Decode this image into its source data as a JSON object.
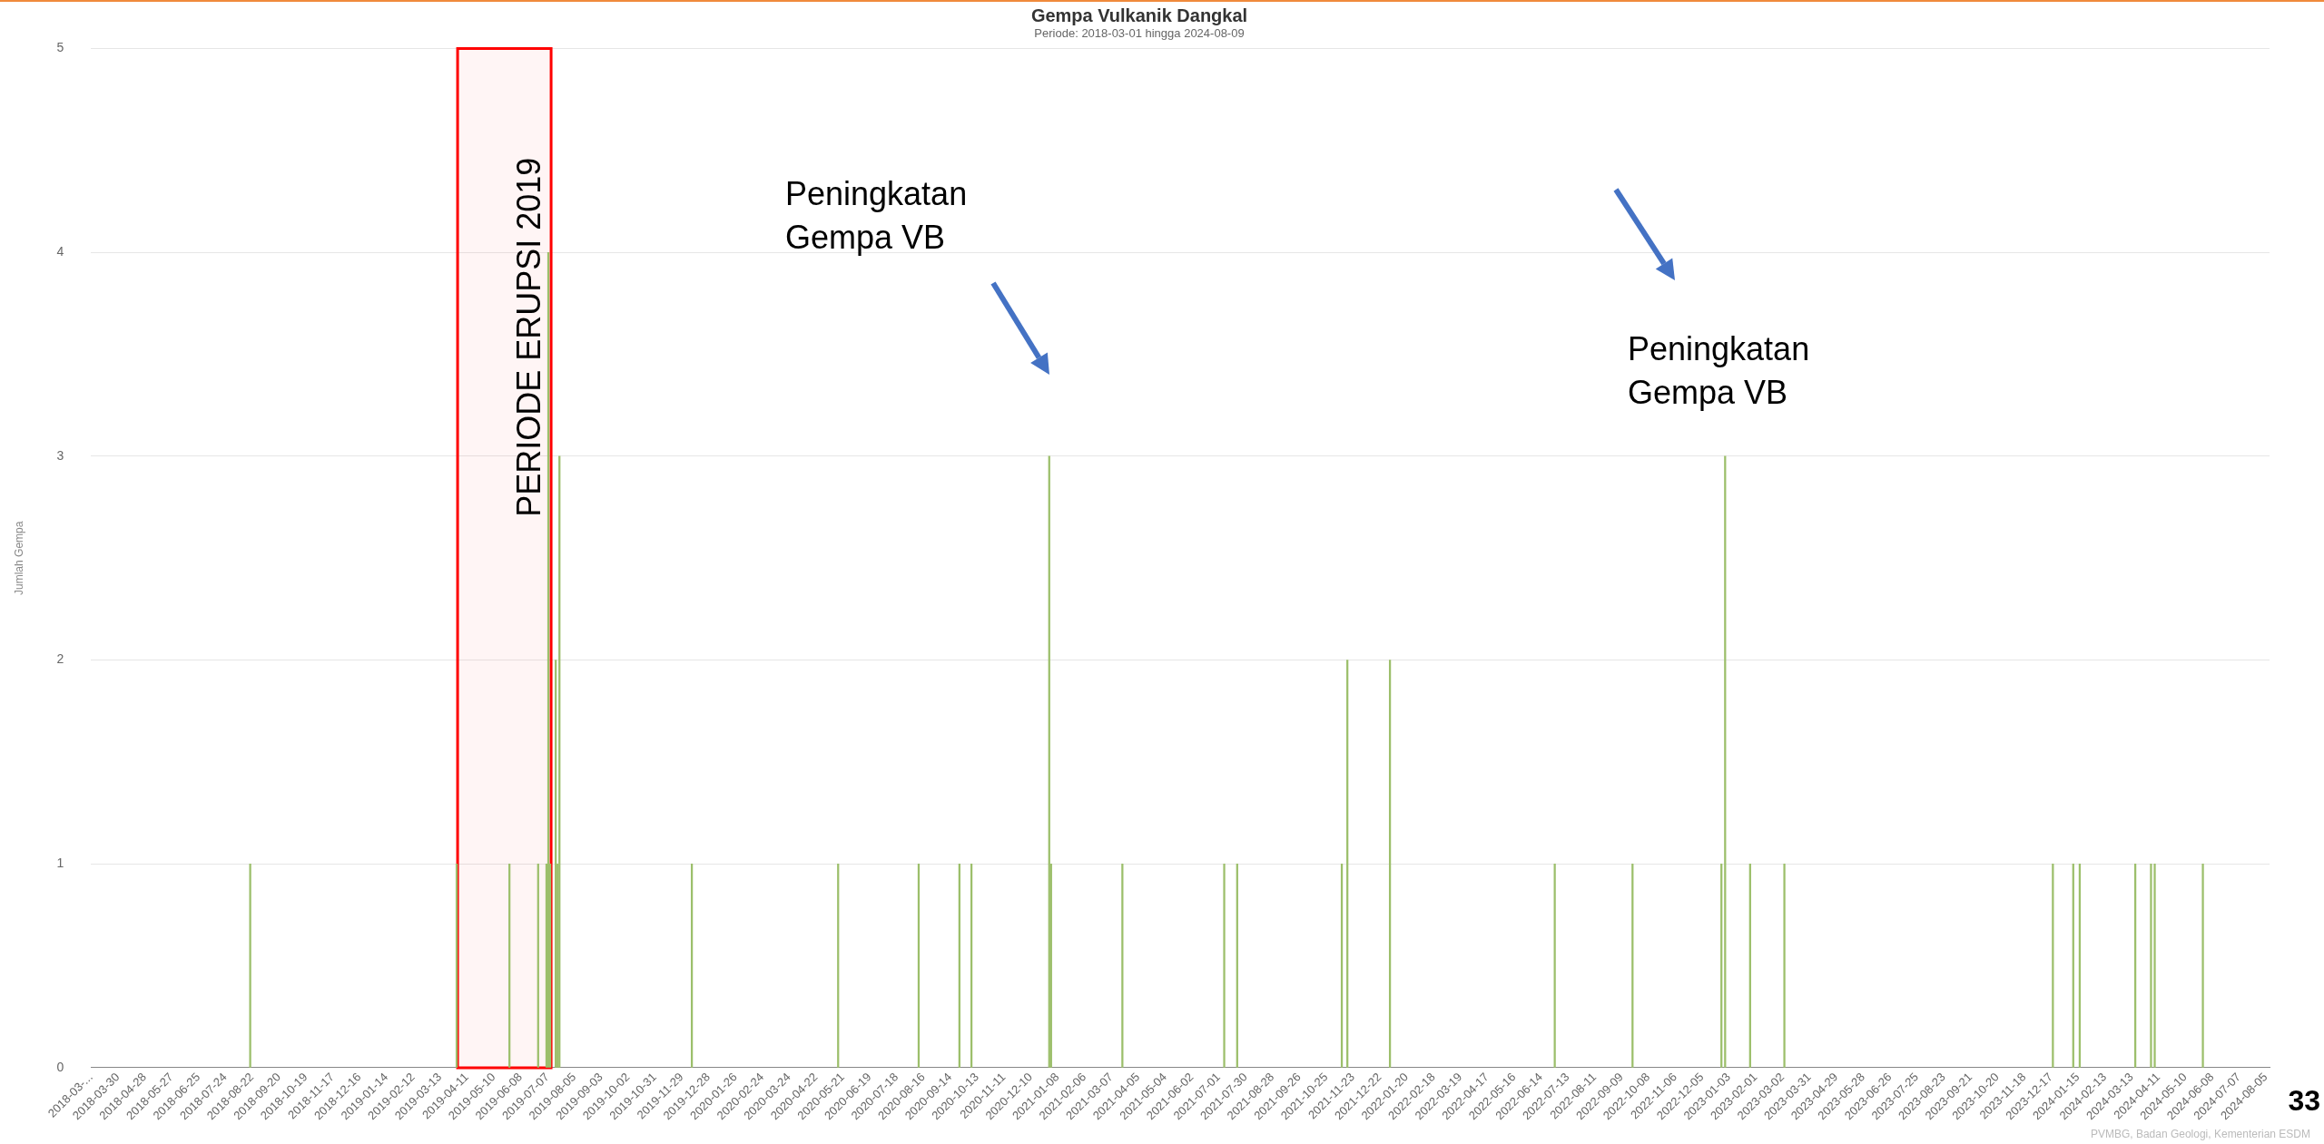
{
  "chart_data": {
    "type": "bar",
    "title": "Gempa Vulkanik Dangkal",
    "subtitle": "Periode: 2018-03-01 hingga 2024-08-09",
    "ylabel": "Jumlah Gempa",
    "x": [
      "2018-08-20",
      "2019-03-31",
      "2019-05-27",
      "2019-06-27",
      "2019-07-06",
      "2019-07-08",
      "2019-07-10",
      "2019-07-16",
      "2019-07-18",
      "2019-07-20",
      "2019-12-10",
      "2020-05-16",
      "2020-08-11",
      "2020-09-24",
      "2020-10-07",
      "2020-12-30",
      "2021-01-01",
      "2021-03-19",
      "2021-07-07",
      "2021-07-21",
      "2021-11-11",
      "2021-11-17",
      "2022-01-02",
      "2022-06-29",
      "2022-09-21",
      "2022-12-26",
      "2022-12-30",
      "2023-01-26",
      "2023-03-04",
      "2023-12-19",
      "2024-01-10",
      "2024-01-17",
      "2024-03-17",
      "2024-04-03",
      "2024-04-07",
      "2024-05-29"
    ],
    "values": [
      1,
      1,
      1,
      1,
      1,
      4,
      1,
      2,
      1,
      3,
      1,
      1,
      1,
      1,
      1,
      3,
      1,
      1,
      1,
      1,
      1,
      2,
      2,
      1,
      1,
      1,
      3,
      1,
      1,
      1,
      1,
      1,
      1,
      1,
      1,
      1
    ],
    "color": "#9cbf6b",
    "xlim": [
      "2018-03-01",
      "2024-08-09"
    ],
    "xticks": [
      {
        "value": "2018-03-01",
        "label": "2018-03-..."
      },
      "2018-03-30",
      "2018-04-28",
      "2018-05-27",
      "2018-06-25",
      "2018-07-24",
      "2018-08-22",
      "2018-09-20",
      "2018-10-19",
      "2018-11-17",
      "2018-12-16",
      "2019-01-14",
      "2019-02-12",
      "2019-03-13",
      "2019-04-11",
      "2019-05-10",
      "2019-06-08",
      "2019-07-07",
      "2019-08-05",
      "2019-09-03",
      "2019-10-02",
      "2019-10-31",
      "2019-11-29",
      "2019-12-28",
      "2020-01-26",
      "2020-02-24",
      "2020-03-24",
      "2020-04-22",
      "2020-05-21",
      "2020-06-19",
      "2020-07-18",
      "2020-08-16",
      "2020-09-14",
      "2020-10-13",
      "2020-11-11",
      "2020-12-10",
      "2021-01-08",
      "2021-02-06",
      "2021-03-07",
      "2021-04-05",
      "2021-05-04",
      "2021-06-02",
      "2021-07-01",
      "2021-07-30",
      "2021-08-28",
      "2021-09-26",
      "2021-10-25",
      "2021-11-23",
      "2021-12-22",
      "2022-01-20",
      "2022-02-18",
      "2022-03-19",
      "2022-04-17",
      "2022-05-16",
      "2022-06-14",
      "2022-07-13",
      "2022-08-11",
      "2022-09-09",
      "2022-10-08",
      "2022-11-06",
      "2022-12-05",
      "2023-01-03",
      "2023-02-01",
      "2023-03-02",
      "2023-03-31",
      "2023-04-29",
      "2023-05-28",
      "2023-06-26",
      "2023-07-25",
      "2023-08-23",
      "2023-09-21",
      "2023-10-20",
      "2023-11-18",
      "2023-12-17",
      "2024-01-15",
      "2024-02-13",
      "2024-03-13",
      "2024-04-11",
      "2024-05-10",
      "2024-06-08",
      "2024-07-07",
      "2024-08-05"
    ],
    "ylim": [
      0,
      5
    ],
    "yticks": [
      0,
      1,
      2,
      3,
      4,
      5
    ],
    "grid": "y",
    "legend": false,
    "bands": [
      {
        "axis": "x",
        "from": "2019-04-01",
        "to": "2019-07-11",
        "label": "PERIODE ERUPSI 2019",
        "color": "#ff0000"
      }
    ],
    "annotations": [
      "Peningkatan Gempa VB",
      "Peningkatan Gempa VB",
      "33",
      "PVMBG, Badan Geologi, Kementerian ESDM"
    ]
  }
}
